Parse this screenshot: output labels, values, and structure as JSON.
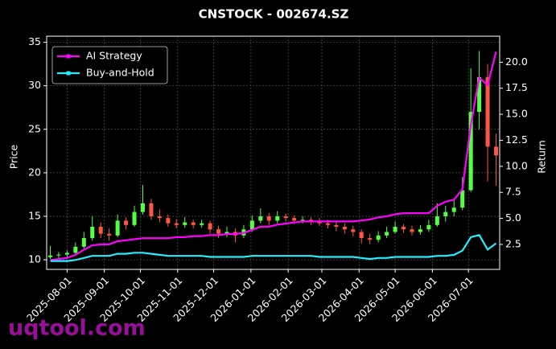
{
  "chart_data": {
    "type": "candlestick",
    "title": "CNSTOCK - 002674.SZ",
    "ylabel": "Price",
    "y2label": "Return",
    "watermark": "uqtool.com",
    "up_color": "#55ff44",
    "down_color": "#ff5544",
    "grid": true,
    "legend": "upper left",
    "xlim": [
      "2025-07-15",
      "2026-07-27"
    ],
    "xticks": [
      "2025-08-01",
      "2025-09-01",
      "2025-10-01",
      "2025-11-01",
      "2025-12-01",
      "2026-01-01",
      "2026-02-01",
      "2026-03-01",
      "2026-04-01",
      "2026-05-01",
      "2026-06-01",
      "2026-07-01"
    ],
    "ylim": [
      8.9,
      35.7
    ],
    "yticks": [
      10,
      15,
      20,
      25,
      30,
      35
    ],
    "y2lim": [
      0.1,
      22.5
    ],
    "y2ticks": [
      {
        "value": 2.5,
        "label": "2.5"
      },
      {
        "value": 5,
        "label": "5.0"
      },
      {
        "value": 7.5,
        "label": "7.5"
      },
      {
        "value": 10,
        "label": "10.0"
      },
      {
        "value": 12.5,
        "label": "12.5"
      },
      {
        "value": 15,
        "label": "15.0"
      },
      {
        "value": 17.5,
        "label": "17.5"
      },
      {
        "value": 20,
        "label": "20.0"
      }
    ],
    "x": [
      "2025-07-18",
      "2025-07-25",
      "2025-08-01",
      "2025-08-08",
      "2025-08-15",
      "2025-08-22",
      "2025-08-29",
      "2025-09-05",
      "2025-09-12",
      "2025-09-19",
      "2025-09-26",
      "2025-10-03",
      "2025-10-10",
      "2025-10-17",
      "2025-10-24",
      "2025-10-31",
      "2025-11-07",
      "2025-11-14",
      "2025-11-21",
      "2025-11-28",
      "2025-12-05",
      "2025-12-12",
      "2025-12-19",
      "2025-12-26",
      "2026-01-02",
      "2026-01-09",
      "2026-01-16",
      "2026-01-23",
      "2026-01-30",
      "2026-02-06",
      "2026-02-13",
      "2026-02-20",
      "2026-02-27",
      "2026-03-06",
      "2026-03-13",
      "2026-03-20",
      "2026-03-27",
      "2026-04-03",
      "2026-04-10",
      "2026-04-17",
      "2026-04-24",
      "2026-05-01",
      "2026-05-08",
      "2026-05-15",
      "2026-05-22",
      "2026-05-29",
      "2026-06-05",
      "2026-06-12",
      "2026-06-19",
      "2026-06-26",
      "2026-07-03",
      "2026-07-10",
      "2026-07-17",
      "2026-07-24"
    ],
    "ohlc": [
      [
        10.3,
        11.6,
        10.1,
        10.5
      ],
      [
        10.5,
        10.9,
        10.2,
        10.6
      ],
      [
        10.6,
        11.1,
        10.3,
        10.8
      ],
      [
        10.8,
        12.0,
        10.6,
        11.5
      ],
      [
        11.5,
        13.2,
        11.2,
        12.5
      ],
      [
        12.5,
        15.0,
        12.2,
        13.8
      ],
      [
        13.8,
        14.3,
        12.5,
        13.0
      ],
      [
        13.0,
        13.6,
        12.2,
        12.8
      ],
      [
        12.8,
        15.2,
        12.6,
        14.5
      ],
      [
        14.5,
        14.9,
        13.5,
        14.0
      ],
      [
        14.0,
        16.2,
        13.8,
        15.5
      ],
      [
        15.5,
        18.6,
        15.2,
        16.5
      ],
      [
        16.5,
        17.0,
        14.6,
        15.0
      ],
      [
        15.0,
        15.8,
        14.3,
        14.8
      ],
      [
        14.8,
        15.2,
        13.8,
        14.2
      ],
      [
        14.2,
        14.7,
        13.6,
        14.0
      ],
      [
        14.0,
        14.9,
        13.7,
        14.3
      ],
      [
        14.3,
        14.6,
        13.6,
        14.0
      ],
      [
        14.0,
        14.6,
        13.7,
        14.2
      ],
      [
        14.2,
        14.5,
        13.0,
        13.5
      ],
      [
        13.5,
        13.9,
        12.5,
        13.0
      ],
      [
        13.0,
        13.8,
        12.6,
        13.2
      ],
      [
        13.2,
        13.6,
        12.0,
        12.8
      ],
      [
        12.8,
        14.0,
        12.5,
        13.5
      ],
      [
        13.5,
        15.1,
        13.2,
        14.5
      ],
      [
        14.5,
        15.9,
        14.2,
        15.0
      ],
      [
        15.0,
        15.4,
        14.0,
        14.5
      ],
      [
        14.5,
        15.6,
        14.2,
        15.0
      ],
      [
        15.0,
        15.3,
        14.4,
        14.8
      ],
      [
        14.8,
        15.1,
        14.1,
        14.5
      ],
      [
        14.5,
        15.0,
        14.2,
        14.6
      ],
      [
        14.6,
        14.9,
        14.0,
        14.4
      ],
      [
        14.4,
        14.8,
        13.9,
        14.2
      ],
      [
        14.2,
        14.6,
        13.6,
        14.0
      ],
      [
        14.0,
        14.5,
        13.3,
        13.8
      ],
      [
        13.8,
        14.2,
        13.0,
        13.5
      ],
      [
        13.5,
        13.9,
        12.7,
        13.2
      ],
      [
        13.2,
        13.5,
        11.9,
        12.5
      ],
      [
        12.5,
        13.0,
        11.8,
        12.3
      ],
      [
        12.3,
        13.3,
        12.0,
        12.8
      ],
      [
        12.8,
        13.8,
        12.5,
        13.2
      ],
      [
        13.2,
        14.4,
        13.0,
        13.8
      ],
      [
        13.8,
        14.1,
        13.1,
        13.5
      ],
      [
        13.5,
        13.9,
        12.8,
        13.2
      ],
      [
        13.2,
        14.0,
        12.9,
        13.5
      ],
      [
        13.5,
        14.6,
        13.2,
        14.0
      ],
      [
        14.0,
        16.5,
        13.8,
        15.0
      ],
      [
        15.0,
        16.2,
        14.4,
        15.5
      ],
      [
        15.5,
        16.8,
        15.0,
        16.0
      ],
      [
        16.0,
        19.5,
        15.7,
        18.0
      ],
      [
        18.0,
        32.0,
        17.8,
        27.0
      ],
      [
        27.0,
        34.0,
        25.0,
        31.0
      ],
      [
        31.0,
        32.5,
        19.0,
        23.0
      ],
      [
        23.0,
        24.5,
        18.5,
        22.0
      ]
    ],
    "series": [
      {
        "name": "AI Strategy",
        "color": "#ff00ff",
        "axis": "y2",
        "values": [
          1.0,
          1.1,
          1.2,
          1.5,
          2.0,
          2.4,
          2.5,
          2.5,
          2.8,
          2.9,
          3.0,
          3.1,
          3.1,
          3.1,
          3.1,
          3.2,
          3.2,
          3.3,
          3.3,
          3.4,
          3.4,
          3.5,
          3.5,
          3.6,
          3.9,
          4.2,
          4.2,
          4.4,
          4.5,
          4.6,
          4.7,
          4.7,
          4.7,
          4.7,
          4.7,
          4.7,
          4.7,
          4.8,
          4.9,
          5.1,
          5.2,
          5.4,
          5.5,
          5.5,
          5.5,
          5.5,
          6.2,
          6.6,
          6.8,
          7.8,
          14.0,
          18.5,
          17.8,
          21.0
        ]
      },
      {
        "name": "Buy-and-Hold",
        "color": "#22eeff",
        "axis": "y2",
        "values": [
          0.9,
          0.9,
          0.9,
          1.0,
          1.2,
          1.4,
          1.4,
          1.4,
          1.6,
          1.6,
          1.7,
          1.7,
          1.6,
          1.5,
          1.4,
          1.4,
          1.4,
          1.4,
          1.4,
          1.3,
          1.3,
          1.3,
          1.3,
          1.3,
          1.4,
          1.4,
          1.4,
          1.4,
          1.4,
          1.4,
          1.4,
          1.4,
          1.3,
          1.3,
          1.3,
          1.3,
          1.3,
          1.2,
          1.1,
          1.2,
          1.2,
          1.3,
          1.3,
          1.3,
          1.3,
          1.3,
          1.4,
          1.4,
          1.5,
          1.9,
          3.2,
          3.4,
          2.0,
          2.6
        ]
      }
    ]
  }
}
